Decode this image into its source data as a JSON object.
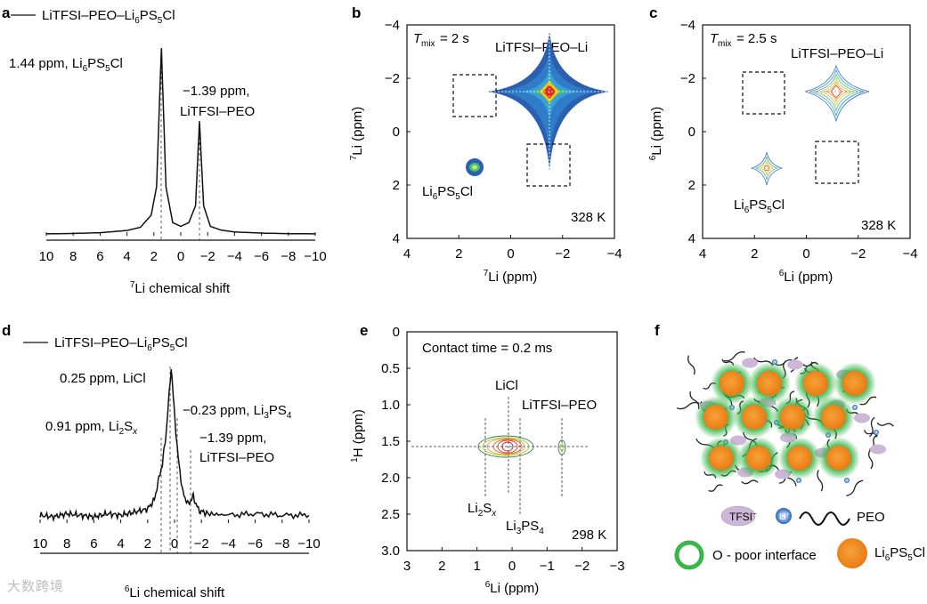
{
  "chart_data": [
    {
      "panel": "a",
      "type": "line",
      "legend": "LiTFSI–PEO–Li6PS5Cl",
      "xlabel": "7Li chemical shift",
      "xlim": [
        10,
        -10
      ],
      "xticks": [
        "10",
        "8",
        "6",
        "4",
        "2",
        "0",
        "−2",
        "−4",
        "−6",
        "−8",
        "−10"
      ],
      "peaks": [
        {
          "position_ppm": 1.44,
          "label": "1.44 ppm, Li6PS5Cl",
          "relative_height": 1.0
        },
        {
          "position_ppm": -1.39,
          "label": "−1.39 ppm, LiTFSI–PEO",
          "relative_height": 0.61
        }
      ],
      "series": [
        {
          "x": [
            10,
            8,
            6,
            4,
            3,
            2.2,
            1.8,
            1.44,
            1.1,
            0.6,
            0,
            -0.6,
            -1.1,
            -1.39,
            -1.7,
            -2.2,
            -3,
            -4,
            -6,
            -8,
            -10
          ],
          "y": [
            0.01,
            0.012,
            0.016,
            0.028,
            0.045,
            0.11,
            0.26,
            1.0,
            0.26,
            0.07,
            0.05,
            0.07,
            0.16,
            0.61,
            0.16,
            0.05,
            0.03,
            0.02,
            0.014,
            0.011,
            0.01
          ]
        }
      ]
    },
    {
      "panel": "b",
      "type": "heatmap",
      "title": "Tmix = 2 s",
      "xlabel": "7Li (ppm)",
      "ylabel": "7Li (ppm)",
      "xlim": [
        4,
        -4
      ],
      "ylim": [
        4,
        -4
      ],
      "xticks": [
        "4",
        "2",
        "0",
        "−2",
        "−4"
      ],
      "yticks": [
        "−4",
        "−2",
        "0",
        "2",
        "4"
      ],
      "peaks": [
        {
          "label": "LiTFSI–PEO–Li",
          "x": -1.39,
          "y": -1.39
        },
        {
          "label": "Li6PS5Cl",
          "x": 1.44,
          "y": 1.44
        }
      ],
      "empty_cross_peak_boxes": [
        {
          "x": 1.44,
          "y": -1.39
        },
        {
          "x": -1.39,
          "y": 1.44
        }
      ],
      "temperature": "328 K"
    },
    {
      "panel": "c",
      "type": "heatmap",
      "title": "Tmix = 2.5 s",
      "xlabel": "6Li (ppm)",
      "ylabel": "6Li (ppm)",
      "xlim": [
        4,
        -4
      ],
      "ylim": [
        4,
        -4
      ],
      "xticks": [
        "4",
        "2",
        "0",
        "−2",
        "−4"
      ],
      "yticks": [
        "−4",
        "−2",
        "0",
        "2",
        "4"
      ],
      "peaks": [
        {
          "label": "LiTFSI–PEO–Li",
          "x": -1.39,
          "y": -1.39
        },
        {
          "label": "Li6PS5Cl",
          "x": 1.44,
          "y": 1.44
        }
      ],
      "empty_cross_peak_boxes": [
        {
          "x": 1.44,
          "y": -1.39
        },
        {
          "x": -1.39,
          "y": 1.44
        }
      ],
      "temperature": "328 K"
    },
    {
      "panel": "d",
      "type": "line",
      "legend": "LiTFSI–PEO–Li6PS5Cl",
      "xlabel": "6Li chemical shift",
      "xlim": [
        10,
        -10
      ],
      "xticks": [
        "10",
        "8",
        "6",
        "4",
        "2",
        "0",
        "−2",
        "−4",
        "−6",
        "−8",
        "−10"
      ],
      "peaks": [
        {
          "position_ppm": 0.25,
          "label": "0.25 ppm, LiCl"
        },
        {
          "position_ppm": 0.91,
          "label": "0.91 ppm, Li2Sx"
        },
        {
          "position_ppm": -0.23,
          "label": "−0.23 ppm, Li3PS4"
        },
        {
          "position_ppm": -1.39,
          "label": "−1.39 ppm, LiTFSI–PEO"
        }
      ],
      "series": [
        {
          "x": [
            10,
            9,
            8,
            7,
            6,
            5,
            4,
            3,
            2,
            1.5,
            1,
            0.91,
            0.6,
            0.25,
            0,
            -0.23,
            -0.6,
            -1,
            -1.39,
            -1.8,
            -2.5,
            -4,
            -6,
            -8,
            -10
          ],
          "y": [
            0.05,
            0.04,
            0.06,
            0.05,
            0.04,
            0.06,
            0.05,
            0.07,
            0.09,
            0.15,
            0.35,
            0.37,
            0.6,
            1.0,
            0.7,
            0.45,
            0.2,
            0.12,
            0.17,
            0.08,
            0.06,
            0.05,
            0.06,
            0.05,
            0.05
          ]
        }
      ]
    },
    {
      "panel": "e",
      "type": "heatmap",
      "title": "Contact time = 0.2 ms",
      "xlabel": "6Li (ppm)",
      "ylabel": "1H (ppm)",
      "xlim": [
        3,
        -3
      ],
      "ylim": [
        0,
        3
      ],
      "xticks": [
        "3",
        "2",
        "1",
        "0",
        "−1",
        "−2",
        "−3"
      ],
      "yticks": [
        "0",
        "0.5",
        "1.0",
        "1.5",
        "2.0",
        "2.5",
        "3.0"
      ],
      "peaks": [
        {
          "label": "LiCl",
          "x": 0.25,
          "y": 1.57
        },
        {
          "label": "LiTFSI–PEO",
          "x": -1.39,
          "y": 1.57
        },
        {
          "label": "Li2Sx",
          "x": 0.91,
          "y": 1.57
        },
        {
          "label": "Li3PS4",
          "x": -0.23,
          "y": 1.57
        }
      ],
      "temperature": "298 K"
    }
  ],
  "panel_labels": {
    "a": "a",
    "b": "b",
    "c": "c",
    "d": "d",
    "e": "e",
    "f": "f"
  },
  "panel_f": {
    "legend": {
      "tfsi": "TFSI",
      "tfsi_sup": "−",
      "li": "Li",
      "li_sup": "+",
      "peo": "PEO",
      "interface": "O - poor interface",
      "particle": "Li6PS5Cl"
    },
    "colors": {
      "particle": "#f08a1c",
      "halo": "#39b54a",
      "tfsi": "#cdb6d8",
      "li": "#5b8fd6"
    }
  },
  "watermark": "大数跨境"
}
